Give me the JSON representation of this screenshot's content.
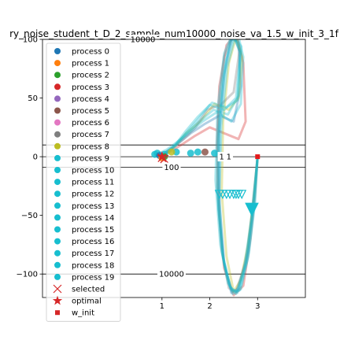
{
  "chart_data": {
    "type": "line",
    "title": "ry_noise_student_t_D_2_sample_num10000_noise_va_1.5_w_init_3_1f",
    "xlim": [
      -1.5,
      4
    ],
    "ylim": [
      -120,
      100
    ],
    "xticks": [
      1,
      2,
      3
    ],
    "yticks": [
      -100,
      -50,
      0,
      50,
      100
    ],
    "xtick_labels": [
      "1",
      "2",
      "3"
    ],
    "ytick_labels": [
      "−100",
      "−50",
      "0",
      "50",
      "100"
    ],
    "grid": false,
    "legend_placement": "upper-left",
    "contour_levels": [
      {
        "label": "10000",
        "y": 100,
        "x": 0.6
      },
      {
        "label": "100",
        "y": -9,
        "x": 1.2
      },
      {
        "label": "10000",
        "y": -100,
        "x": 1.2
      },
      {
        "label": "1",
        "y": 0,
        "x": 2.25
      },
      {
        "label": "1",
        "y": 0,
        "x": 2.4
      }
    ],
    "contour_lines_y": [
      100,
      10,
      0,
      -9,
      -100
    ],
    "legend": [
      {
        "label": "process 0",
        "color": "#1f77b4",
        "marker": "circle"
      },
      {
        "label": "process 1",
        "color": "#ff7f0e",
        "marker": "circle"
      },
      {
        "label": "process 2",
        "color": "#2ca02c",
        "marker": "circle"
      },
      {
        "label": "process 3",
        "color": "#d62728",
        "marker": "circle"
      },
      {
        "label": "process 4",
        "color": "#9467bd",
        "marker": "circle"
      },
      {
        "label": "process 5",
        "color": "#8c564b",
        "marker": "circle"
      },
      {
        "label": "process 6",
        "color": "#e377c2",
        "marker": "circle"
      },
      {
        "label": "process 7",
        "color": "#7f7f7f",
        "marker": "circle"
      },
      {
        "label": "process 8",
        "color": "#bcbd22",
        "marker": "circle"
      },
      {
        "label": "process 9",
        "color": "#17becf",
        "marker": "circle"
      },
      {
        "label": "process 10",
        "color": "#17becf",
        "marker": "circle"
      },
      {
        "label": "process 11",
        "color": "#17becf",
        "marker": "circle"
      },
      {
        "label": "process 12",
        "color": "#17becf",
        "marker": "circle"
      },
      {
        "label": "process 13",
        "color": "#17becf",
        "marker": "circle"
      },
      {
        "label": "process 14",
        "color": "#17becf",
        "marker": "circle"
      },
      {
        "label": "process 15",
        "color": "#17becf",
        "marker": "circle"
      },
      {
        "label": "process 16",
        "color": "#17becf",
        "marker": "circle"
      },
      {
        "label": "process 17",
        "color": "#17becf",
        "marker": "circle"
      },
      {
        "label": "process 18",
        "color": "#17becf",
        "marker": "circle"
      },
      {
        "label": "process 19",
        "color": "#17becf",
        "marker": "circle"
      },
      {
        "label": "selected",
        "color": "#d62728",
        "marker": "x"
      },
      {
        "label": "optimal",
        "color": "#d62728",
        "marker": "star"
      },
      {
        "label": "w_init",
        "color": "#d62728",
        "marker": "square"
      }
    ],
    "series": [
      {
        "color": "#d62728",
        "x": [
          3.0,
          2.95,
          2.85,
          2.7,
          2.5,
          2.3,
          2.2,
          2.15,
          2.2,
          2.35,
          2.55,
          2.7,
          2.75,
          2.6,
          2.3,
          2.0,
          1.7,
          1.4,
          1.2,
          1.05
        ],
        "y": [
          0,
          -30,
          -70,
          -110,
          -118,
          -95,
          -50,
          10,
          60,
          95,
          105,
          80,
          30,
          15,
          20,
          25,
          18,
          10,
          5,
          2
        ]
      },
      {
        "color": "#1f77b4",
        "x": [
          3.0,
          2.9,
          2.8,
          2.6,
          2.45,
          2.3,
          2.2,
          2.2,
          2.3,
          2.45,
          2.6,
          2.65,
          2.5,
          2.2,
          1.9,
          1.6,
          1.3,
          1.1,
          1.0
        ],
        "y": [
          0,
          -40,
          -80,
          -112,
          -116,
          -90,
          -40,
          20,
          70,
          100,
          98,
          60,
          30,
          35,
          28,
          20,
          10,
          4,
          1
        ]
      },
      {
        "color": "#bcbd22",
        "x": [
          3.0,
          2.92,
          2.8,
          2.65,
          2.5,
          2.35,
          2.25,
          2.28,
          2.4,
          2.55,
          2.68,
          2.6,
          2.4,
          2.1,
          1.8,
          1.5,
          1.25,
          1.1
        ],
        "y": [
          0,
          -35,
          -75,
          -105,
          -115,
          -85,
          -30,
          30,
          80,
          102,
          85,
          50,
          40,
          45,
          30,
          20,
          8,
          3
        ]
      },
      {
        "color": "#7f7f7f",
        "x": [
          3.0,
          2.9,
          2.75,
          2.55,
          2.4,
          2.25,
          2.15,
          2.18,
          2.3,
          2.5,
          2.62,
          2.5,
          2.25,
          1.95,
          1.7,
          1.45,
          1.2,
          1.0
        ],
        "y": [
          0,
          -45,
          -90,
          -115,
          -112,
          -80,
          -25,
          35,
          85,
          104,
          90,
          55,
          45,
          40,
          25,
          15,
          7,
          2
        ]
      },
      {
        "color": "#17becf",
        "x": [
          3.0,
          2.95,
          2.82,
          2.65,
          2.48,
          2.3,
          2.18,
          2.17,
          2.27,
          2.42,
          2.58,
          2.7,
          2.65,
          2.45,
          2.15,
          1.85,
          1.55,
          1.3,
          1.1,
          0.95
        ],
        "y": [
          0,
          -38,
          -82,
          -113,
          -117,
          -92,
          -45,
          15,
          65,
          98,
          106,
          85,
          45,
          30,
          38,
          30,
          20,
          12,
          6,
          3
        ]
      },
      {
        "color": "#17becf",
        "x": [
          3.0,
          2.88,
          2.72,
          2.55,
          2.38,
          2.22,
          2.12,
          2.16,
          2.3,
          2.48,
          2.64,
          2.58,
          2.35,
          2.05,
          1.75,
          1.5,
          1.28,
          1.08
        ],
        "y": [
          0,
          -50,
          -95,
          -117,
          -108,
          -75,
          -20,
          40,
          88,
          105,
          88,
          48,
          42,
          46,
          34,
          22,
          10,
          4
        ]
      },
      {
        "color": "#17becf",
        "x": [
          3.0,
          2.93,
          2.8,
          2.62,
          2.45,
          2.28,
          2.2,
          2.24,
          2.36,
          2.52,
          2.66,
          2.6,
          2.38,
          2.08,
          1.78,
          1.52,
          1.28,
          1.12
        ],
        "y": [
          0,
          -42,
          -86,
          -114,
          -114,
          -86,
          -34,
          26,
          76,
          101,
          94,
          52,
          36,
          40,
          30,
          20,
          9,
          3
        ]
      },
      {
        "color": "#17becf",
        "x": [
          3.0,
          2.9,
          2.76,
          2.58,
          2.42,
          2.26,
          2.16,
          2.2,
          2.34,
          2.5,
          2.64,
          2.55,
          2.3,
          2.0,
          1.72,
          1.46,
          1.22,
          1.05
        ],
        "y": [
          0,
          -46,
          -90,
          -116,
          -111,
          -82,
          -28,
          32,
          82,
          103,
          90,
          50,
          40,
          44,
          30,
          18,
          8,
          2
        ]
      }
    ],
    "points": [
      {
        "label": "process 9",
        "color": "#17becf",
        "x": 0.85,
        "y": 2
      },
      {
        "label": "process 10",
        "color": "#17becf",
        "x": 0.9,
        "y": 3
      },
      {
        "label": "process 11",
        "color": "#17becf",
        "x": 1.3,
        "y": 4
      },
      {
        "label": "process 12",
        "color": "#17becf",
        "x": 1.05,
        "y": 2
      },
      {
        "label": "process 0",
        "color": "#1f77b4",
        "x": 0.95,
        "y": 1
      },
      {
        "label": "process 1",
        "color": "#ff7f0e",
        "x": 1.0,
        "y": -1
      },
      {
        "label": "process 2",
        "color": "#2ca02c",
        "x": 1.05,
        "y": 0
      },
      {
        "label": "process 5",
        "color": "#8c564b",
        "x": 1.9,
        "y": 4
      },
      {
        "label": "process 8",
        "color": "#bcbd22",
        "x": 1.2,
        "y": 4
      },
      {
        "label": "process 13",
        "color": "#17becf",
        "x": 1.6,
        "y": 3
      },
      {
        "label": "process 14",
        "color": "#17becf",
        "x": 1.75,
        "y": 4
      },
      {
        "label": "process 15",
        "color": "#17becf",
        "x": 2.1,
        "y": 3
      }
    ],
    "selected": [
      {
        "x": 1.0,
        "y": -1
      },
      {
        "x": 1.05,
        "y": -2
      }
    ],
    "optimal": {
      "x": 1.0,
      "y": 0
    },
    "w_init": {
      "x": 3.0,
      "y": 0
    },
    "triangles": {
      "y": -32,
      "x": [
        2.2,
        2.27,
        2.35,
        2.42,
        2.5,
        2.55,
        2.6,
        2.67
      ]
    },
    "big_arrow": {
      "x": 2.88,
      "y": -45
    }
  }
}
